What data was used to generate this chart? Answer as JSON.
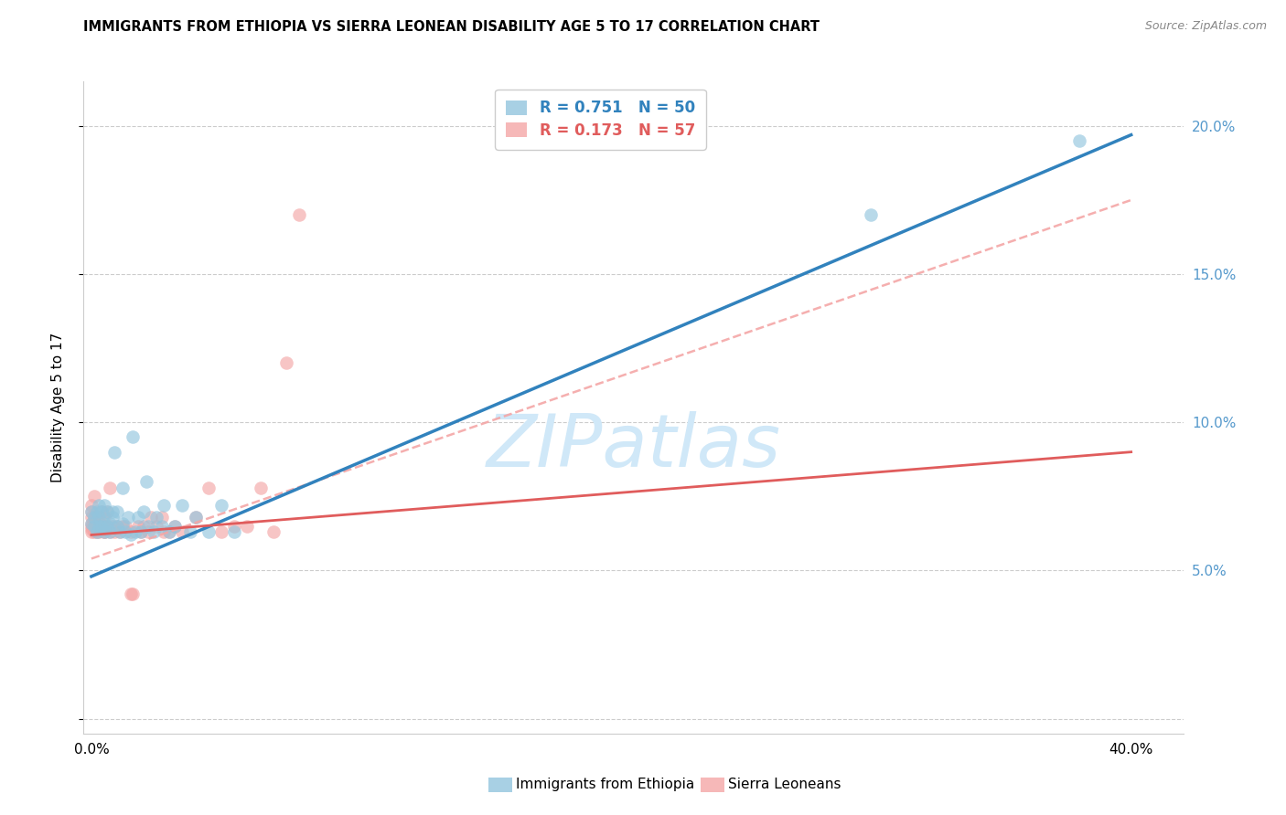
{
  "title": "IMMIGRANTS FROM ETHIOPIA VS SIERRA LEONEAN DISABILITY AGE 5 TO 17 CORRELATION CHART",
  "source": "Source: ZipAtlas.com",
  "ylabel_label": "Disability Age 5 to 17",
  "xlim": [
    -0.003,
    0.42
  ],
  "ylim": [
    -0.005,
    0.215
  ],
  "legend1_label": "R = 0.751   N = 50",
  "legend2_label": "R = 0.173   N = 57",
  "legend_bottom_label1": "Immigrants from Ethiopia",
  "legend_bottom_label2": "Sierra Leoneans",
  "blue_color": "#92c5de",
  "pink_color": "#f4a6a6",
  "blue_line_color": "#3182bd",
  "pink_line_color": "#e05c5c",
  "watermark_color": "#d0e8f8",
  "grid_color": "#cccccc",
  "right_axis_color": "#5599cc",
  "blue_scatter_x": [
    0.0,
    0.0,
    0.001,
    0.001,
    0.002,
    0.002,
    0.003,
    0.003,
    0.003,
    0.004,
    0.004,
    0.005,
    0.005,
    0.005,
    0.006,
    0.006,
    0.007,
    0.007,
    0.008,
    0.008,
    0.009,
    0.01,
    0.01,
    0.011,
    0.012,
    0.012,
    0.013,
    0.014,
    0.015,
    0.016,
    0.017,
    0.018,
    0.019,
    0.02,
    0.021,
    0.022,
    0.024,
    0.025,
    0.027,
    0.028,
    0.03,
    0.032,
    0.035,
    0.038,
    0.04,
    0.045,
    0.05,
    0.055,
    0.3,
    0.38
  ],
  "blue_scatter_y": [
    0.066,
    0.07,
    0.065,
    0.068,
    0.063,
    0.07,
    0.065,
    0.068,
    0.072,
    0.065,
    0.07,
    0.063,
    0.066,
    0.072,
    0.065,
    0.07,
    0.063,
    0.066,
    0.07,
    0.068,
    0.09,
    0.065,
    0.07,
    0.063,
    0.066,
    0.078,
    0.063,
    0.068,
    0.062,
    0.095,
    0.063,
    0.068,
    0.063,
    0.07,
    0.08,
    0.065,
    0.063,
    0.068,
    0.065,
    0.072,
    0.063,
    0.065,
    0.072,
    0.063,
    0.068,
    0.063,
    0.072,
    0.063,
    0.17,
    0.195
  ],
  "pink_scatter_x": [
    0.0,
    0.0,
    0.0,
    0.0,
    0.0,
    0.0,
    0.0,
    0.001,
    0.001,
    0.001,
    0.001,
    0.001,
    0.002,
    0.002,
    0.002,
    0.003,
    0.003,
    0.003,
    0.004,
    0.004,
    0.005,
    0.005,
    0.005,
    0.005,
    0.006,
    0.006,
    0.007,
    0.007,
    0.008,
    0.009,
    0.01,
    0.011,
    0.012,
    0.013,
    0.015,
    0.015,
    0.016,
    0.018,
    0.019,
    0.02,
    0.022,
    0.023,
    0.025,
    0.027,
    0.028,
    0.03,
    0.032,
    0.035,
    0.04,
    0.045,
    0.05,
    0.055,
    0.06,
    0.065,
    0.07,
    0.075,
    0.08
  ],
  "pink_scatter_y": [
    0.063,
    0.064,
    0.065,
    0.066,
    0.068,
    0.07,
    0.072,
    0.063,
    0.065,
    0.067,
    0.068,
    0.075,
    0.063,
    0.065,
    0.068,
    0.063,
    0.065,
    0.068,
    0.065,
    0.07,
    0.063,
    0.063,
    0.065,
    0.068,
    0.065,
    0.07,
    0.063,
    0.078,
    0.065,
    0.063,
    0.065,
    0.063,
    0.065,
    0.065,
    0.042,
    0.063,
    0.042,
    0.065,
    0.063,
    0.065,
    0.063,
    0.068,
    0.065,
    0.068,
    0.063,
    0.063,
    0.065,
    0.063,
    0.068,
    0.078,
    0.063,
    0.065,
    0.065,
    0.078,
    0.063,
    0.12,
    0.17
  ],
  "blue_line_x0": 0.0,
  "blue_line_x1": 0.4,
  "blue_line_y0": 0.048,
  "blue_line_y1": 0.197,
  "pink_line_x0": 0.0,
  "pink_line_x1": 0.4,
  "pink_line_y0": 0.062,
  "pink_line_y1": 0.09,
  "dashed_line_x0": 0.0,
  "dashed_line_x1": 0.4,
  "dashed_line_y0": 0.054,
  "dashed_line_y1": 0.175
}
